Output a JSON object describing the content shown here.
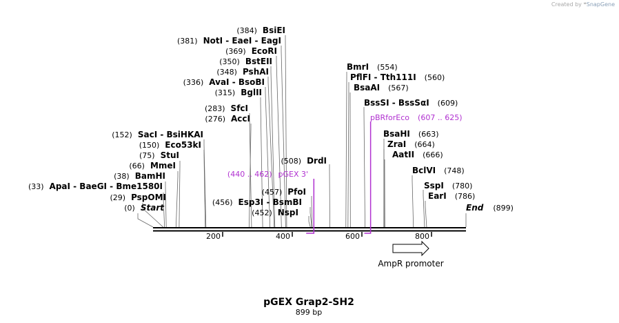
{
  "branding": {
    "created_by": "Created by",
    "app_name": "SnapGene"
  },
  "map": {
    "name": "pGEX Grap2-SH2",
    "length_label": "899 bp",
    "length": 899,
    "ticks": [
      {
        "pos": 200,
        "label": "200"
      },
      {
        "pos": 400,
        "label": "400"
      },
      {
        "pos": 600,
        "label": "600"
      },
      {
        "pos": 800,
        "label": "800"
      }
    ],
    "sites": [
      {
        "pos": 0,
        "names": [
          "Start"
        ],
        "label": "(0)",
        "italic": true
      },
      {
        "pos": 29,
        "names": [
          "PspOMI"
        ],
        "label": "(29)"
      },
      {
        "pos": 33,
        "names": [
          "ApaI",
          "BaeGI",
          "Bme1580I"
        ],
        "label": "(33)"
      },
      {
        "pos": 38,
        "names": [
          "BamHI"
        ],
        "label": "(38)"
      },
      {
        "pos": 66,
        "names": [
          "MmeI"
        ],
        "label": "(66)"
      },
      {
        "pos": 75,
        "names": [
          "StuI"
        ],
        "label": "(75)"
      },
      {
        "pos": 150,
        "names": [
          "Eco53kI"
        ],
        "label": "(150)"
      },
      {
        "pos": 152,
        "names": [
          "SacI",
          "BsiHKAI"
        ],
        "label": "(152)"
      },
      {
        "pos": 276,
        "names": [
          "AccI"
        ],
        "label": "(276)"
      },
      {
        "pos": 283,
        "names": [
          "SfcI"
        ],
        "label": "(283)"
      },
      {
        "pos": 315,
        "names": [
          "BglII"
        ],
        "label": "(315)"
      },
      {
        "pos": 336,
        "names": [
          "AvaI",
          "BsoBI"
        ],
        "label": "(336)"
      },
      {
        "pos": 348,
        "names": [
          "PshAI"
        ],
        "label": "(348)"
      },
      {
        "pos": 350,
        "names": [
          "BstEII"
        ],
        "label": "(350)"
      },
      {
        "pos": 369,
        "names": [
          "EcoRI"
        ],
        "label": "(369)"
      },
      {
        "pos": 381,
        "names": [
          "NotI",
          "EaeI",
          "EagI"
        ],
        "label": "(381)"
      },
      {
        "pos": 384,
        "names": [
          "BsiEI"
        ],
        "label": "(384)"
      },
      {
        "pos": 456,
        "names": [
          "Esp3I",
          "BsmBI"
        ],
        "label": "(456)"
      },
      {
        "pos": 452,
        "names": [
          "NspI"
        ],
        "label": "(452)"
      },
      {
        "pos": 457,
        "names": [
          "PfoI"
        ],
        "label": "(457)"
      },
      {
        "pos": 508,
        "names": [
          "DrdI"
        ],
        "label": "(508)"
      },
      {
        "pos": 554,
        "names": [
          "BmrI"
        ],
        "label": "(554)"
      },
      {
        "pos": 560,
        "names": [
          "PflFI",
          "Tth111I"
        ],
        "label": "(560)"
      },
      {
        "pos": 567,
        "names": [
          "BsaAI"
        ],
        "label": "(567)"
      },
      {
        "pos": 609,
        "names": [
          "BssSI",
          "BssSαI"
        ],
        "label": "(609)"
      },
      {
        "pos": 663,
        "names": [
          "BsaHI"
        ],
        "label": "(663)"
      },
      {
        "pos": 664,
        "names": [
          "ZraI"
        ],
        "label": "(664)"
      },
      {
        "pos": 666,
        "names": [
          "AatII"
        ],
        "label": "(666)"
      },
      {
        "pos": 748,
        "names": [
          "BclVI"
        ],
        "label": "(748)"
      },
      {
        "pos": 780,
        "names": [
          "SspI"
        ],
        "label": "(780)"
      },
      {
        "pos": 786,
        "names": [
          "EarI"
        ],
        "label": "(786)"
      },
      {
        "pos": 899,
        "names": [
          "End"
        ],
        "label": "(899)",
        "italic": true
      }
    ],
    "primers": [
      {
        "name": "pGEX 3'",
        "range": "(440 .. 462)",
        "start": 440,
        "end": 462,
        "direction": "reverse"
      },
      {
        "name": "pBRforEco",
        "range": "(607 .. 625)",
        "start": 607,
        "end": 625,
        "direction": "forward"
      }
    ],
    "features": [
      {
        "name": "AmpR promoter",
        "start": 690,
        "end": 795,
        "direction": "forward"
      }
    ],
    "colors": {
      "primer": "#b030d0",
      "backbone": "#000000",
      "feature_fill": "#ffffff"
    }
  }
}
